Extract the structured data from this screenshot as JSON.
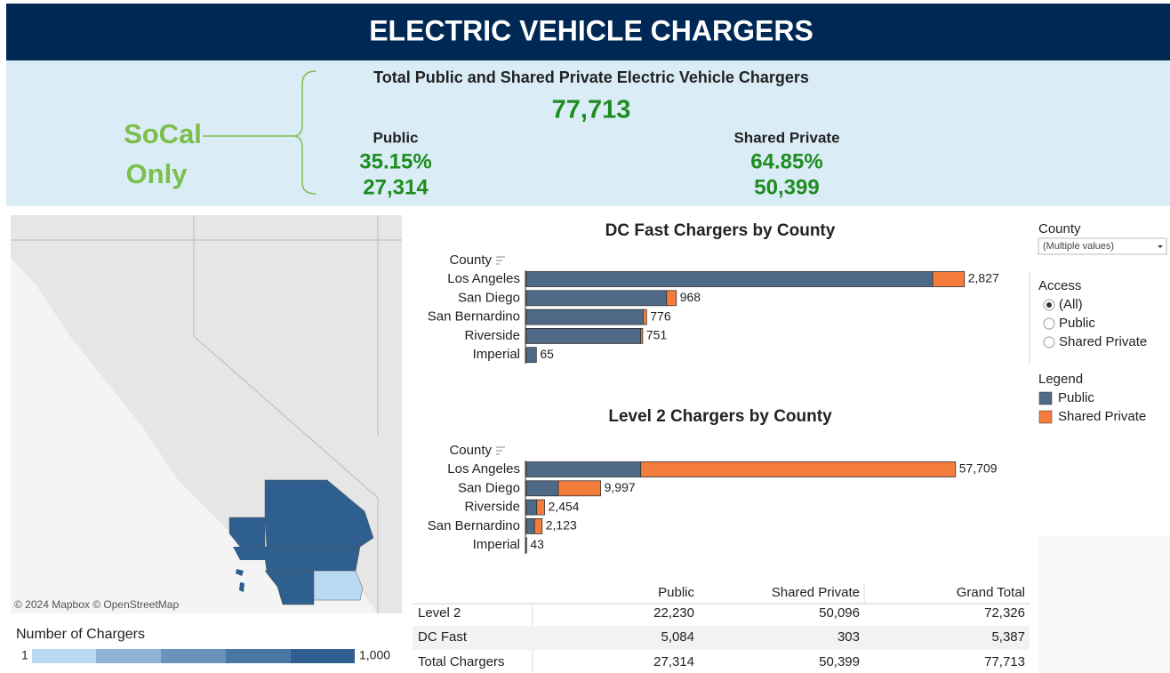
{
  "header": {
    "title": "ELECTRIC VEHICLE CHARGERS"
  },
  "summary": {
    "region_lines": [
      "SoCal",
      "Only"
    ],
    "title": "Total Public and Shared Private Electric Vehicle Chargers",
    "total": "77,713",
    "public": {
      "label": "Public",
      "percent": "35.15%",
      "count": "27,314"
    },
    "shared": {
      "label": "Shared Private",
      "percent": "64.85%",
      "count": "50,399"
    }
  },
  "map": {
    "attribution": "© 2024 Mapbox © OpenStreetMap",
    "legend_title": "Number of Chargers",
    "legend_min": "1",
    "legend_max": "1,000"
  },
  "chart_data": [
    {
      "type": "stacked_hbar",
      "title": "DC Fast Chargers by County",
      "category_label": "County",
      "categories": [
        "Los Angeles",
        "San Diego",
        "San Bernardino",
        "Riverside",
        "Imperial"
      ],
      "series": [
        {
          "name": "Public",
          "color": "#4f6a87",
          "values": [
            2622,
            905,
            754,
            738,
            65
          ]
        },
        {
          "name": "Shared Private",
          "color": "#f47c3c",
          "values": [
            205,
            63,
            22,
            13,
            0
          ]
        }
      ],
      "totals": [
        2827,
        968,
        776,
        751,
        65
      ],
      "total_labels": [
        "2,827",
        "968",
        "776",
        "751",
        "65"
      ],
      "xlim": [
        0,
        3230
      ]
    },
    {
      "type": "stacked_hbar",
      "title": "Level 2 Chargers by County",
      "category_label": "County",
      "categories": [
        "Los Angeles",
        "San Diego",
        "Riverside",
        "San Bernardino",
        "Imperial"
      ],
      "series": [
        {
          "name": "Public",
          "color": "#4f6a87",
          "values": [
            15387,
            4300,
            1400,
            1100,
            43
          ]
        },
        {
          "name": "Shared Private",
          "color": "#f47c3c",
          "values": [
            42322,
            5697,
            1054,
            1023,
            0
          ]
        }
      ],
      "totals": [
        57709,
        9997,
        2454,
        2123,
        43
      ],
      "total_labels": [
        "57,709",
        "9,997",
        "2,454",
        "2,123",
        "43"
      ],
      "xlim": [
        0,
        67300
      ]
    }
  ],
  "table": {
    "columns": [
      "Public",
      "Shared Private",
      "Grand Total"
    ],
    "rows": [
      {
        "label": "Level 2",
        "cells": [
          "22,230",
          "50,096",
          "72,326"
        ]
      },
      {
        "label": "DC Fast",
        "cells": [
          "5,084",
          "303",
          "5,387"
        ]
      },
      {
        "label": "Total Chargers",
        "cells": [
          "27,314",
          "50,399",
          "77,713"
        ]
      }
    ]
  },
  "filters": {
    "county": {
      "label": "County",
      "value": "(Multiple values)"
    },
    "access": {
      "label": "Access",
      "options": [
        "(All)",
        "Public",
        "Shared Private"
      ]
    },
    "legend": {
      "label": "Legend"
    }
  }
}
